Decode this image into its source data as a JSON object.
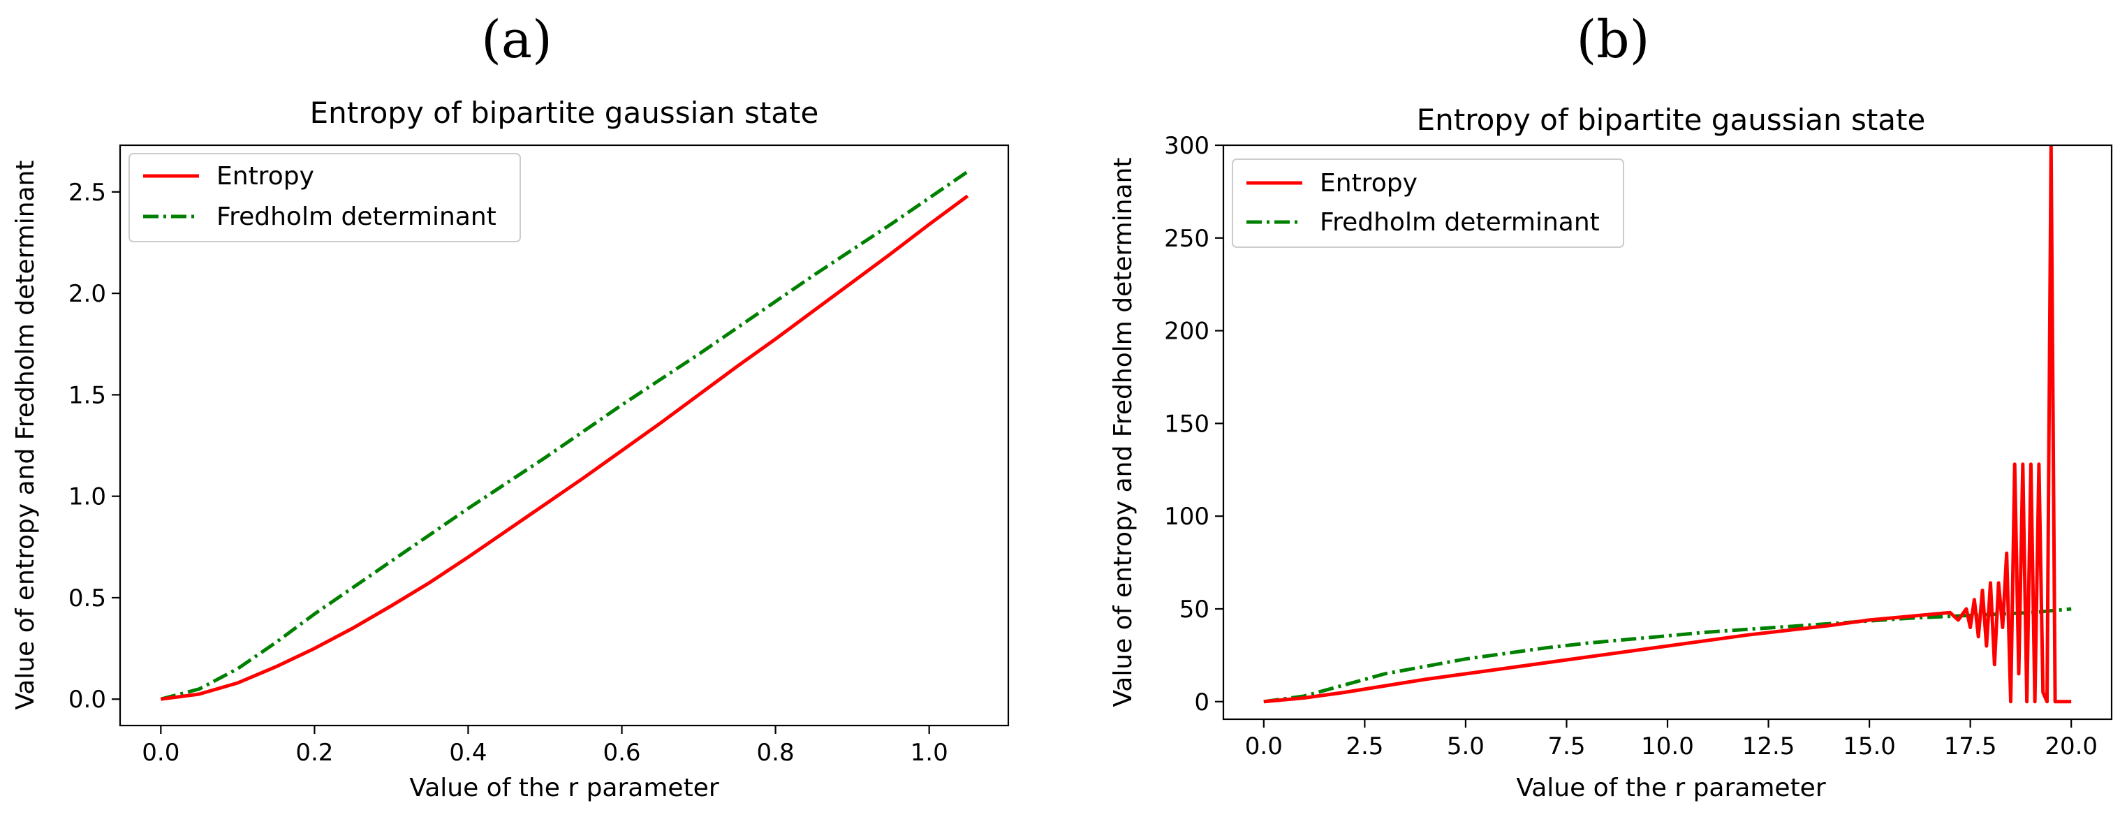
{
  "chart_data": [
    {
      "type": "line",
      "panel_label": "(a)",
      "title": "Entropy of bipartite gaussian state",
      "xlabel": "Value of the r parameter",
      "ylabel": "Value of entropy and Fredholm determinant",
      "xlim": [
        -0.053,
        1.103
      ],
      "ylim": [
        -0.13,
        2.73
      ],
      "xticks": [
        0,
        0.2,
        0.4,
        0.6,
        0.8,
        1.0
      ],
      "xtick_labels": [
        "0.0",
        "0.2",
        "0.4",
        "0.6",
        "0.8",
        "1.0"
      ],
      "yticks": [
        0,
        0.5,
        1.0,
        1.5,
        2.0,
        2.5
      ],
      "ytick_labels": [
        "0.0",
        "0.5",
        "1.0",
        "1.5",
        "2.0",
        "2.5"
      ],
      "legend": {
        "position": "top-left",
        "entries": [
          "Entropy",
          "Fredholm determinant"
        ]
      },
      "series": [
        {
          "name": "Entropy",
          "color": "#ff0000",
          "style": "solid",
          "x": [
            0,
            0.05,
            0.1,
            0.15,
            0.2,
            0.25,
            0.3,
            0.35,
            0.4,
            0.45,
            0.5,
            0.55,
            0.6,
            0.65,
            0.7,
            0.75,
            0.8,
            0.85,
            0.9,
            0.95,
            1.0,
            1.05
          ],
          "y": [
            0,
            0.025,
            0.08,
            0.16,
            0.25,
            0.35,
            0.46,
            0.575,
            0.7,
            0.83,
            0.96,
            1.09,
            1.225,
            1.36,
            1.5,
            1.64,
            1.775,
            1.915,
            2.055,
            2.195,
            2.34,
            2.48
          ]
        },
        {
          "name": "Fredholm determinant",
          "color": "#008000",
          "style": "dashdot",
          "x": [
            0,
            0.05,
            0.1,
            0.15,
            0.2,
            0.25,
            0.3,
            0.35,
            0.4,
            0.45,
            0.5,
            0.55,
            0.6,
            0.65,
            0.7,
            0.75,
            0.8,
            0.85,
            0.9,
            0.95,
            1.0,
            1.05
          ],
          "y": [
            0,
            0.05,
            0.15,
            0.28,
            0.42,
            0.55,
            0.68,
            0.81,
            0.94,
            1.065,
            1.19,
            1.32,
            1.45,
            1.575,
            1.7,
            1.83,
            1.96,
            2.09,
            2.215,
            2.34,
            2.47,
            2.6
          ]
        }
      ]
    },
    {
      "type": "line",
      "panel_label": "(b)",
      "title": "Entropy of bipartite gaussian state",
      "xlabel": "Value of the r parameter",
      "ylabel": "Value of entropy and Fredholm determinant",
      "xlim": [
        -1.0,
        21.0
      ],
      "ylim": [
        -9.5,
        300
      ],
      "xticks": [
        0,
        2.5,
        5,
        7.5,
        10,
        12.5,
        15,
        17.5,
        20
      ],
      "xtick_labels": [
        "0.0",
        "2.5",
        "5.0",
        "7.5",
        "10.0",
        "12.5",
        "15.0",
        "17.5",
        "20.0"
      ],
      "yticks": [
        0,
        50,
        100,
        150,
        200,
        250,
        300
      ],
      "ytick_labels": [
        "0",
        "50",
        "100",
        "150",
        "200",
        "250",
        "300"
      ],
      "legend": {
        "position": "top-left",
        "entries": [
          "Entropy",
          "Fredholm determinant"
        ]
      },
      "series": [
        {
          "name": "Entropy",
          "color": "#ff0000",
          "style": "solid",
          "x": [
            0,
            1,
            2,
            4,
            6,
            8,
            10,
            12,
            14,
            15,
            16,
            16.5,
            17,
            17.2,
            17.4,
            17.5,
            17.6,
            17.7,
            17.8,
            17.9,
            18.0,
            18.1,
            18.2,
            18.3,
            18.4,
            18.5,
            18.6,
            18.7,
            18.8,
            18.9,
            19.0,
            19.1,
            19.2,
            19.3,
            19.4,
            19.5,
            19.6,
            19.7,
            19.8,
            19.9,
            20.0
          ],
          "y": [
            0,
            2,
            5,
            12,
            18,
            24,
            30,
            36,
            41,
            44,
            46,
            47,
            48,
            44,
            50,
            40,
            55,
            35,
            60,
            30,
            64,
            20,
            64,
            40,
            80,
            0,
            128,
            15,
            128,
            0,
            128,
            0,
            128,
            5,
            0,
            300,
            0,
            0,
            0,
            0,
            0
          ]
        },
        {
          "name": "Fredholm determinant",
          "color": "#008000",
          "style": "dashdot",
          "x": [
            0,
            1,
            2,
            3,
            4,
            5,
            6,
            7,
            8,
            9,
            10,
            11,
            12,
            13,
            14,
            15,
            16,
            17,
            18,
            19,
            20
          ],
          "y": [
            0,
            3,
            9,
            15,
            19,
            23,
            26,
            29,
            31.5,
            33.5,
            35.5,
            37.5,
            39,
            40.5,
            42,
            43.5,
            45,
            46,
            47,
            48,
            50
          ]
        }
      ]
    }
  ]
}
